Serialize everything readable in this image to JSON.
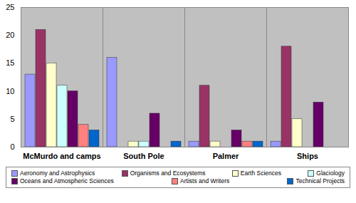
{
  "chart_data": {
    "type": "bar",
    "categories": [
      "McMurdo and camps",
      "South Pole",
      "Palmer",
      "Ships"
    ],
    "series": [
      {
        "name": "Aeronomy and Astrophysics",
        "color": "#9999ff",
        "values": [
          13,
          16,
          1,
          1
        ]
      },
      {
        "name": "Organisms and Ecosystems",
        "color": "#993366",
        "values": [
          21,
          0,
          11,
          18
        ]
      },
      {
        "name": "Earth Sciences",
        "color": "#ffffcc",
        "values": [
          15,
          1,
          1,
          5
        ]
      },
      {
        "name": "Glaciology",
        "color": "#ccffff",
        "values": [
          11,
          1,
          0,
          0
        ]
      },
      {
        "name": "Oceans and Atmospheric Sciences",
        "color": "#660066",
        "values": [
          10,
          6,
          3,
          8
        ]
      },
      {
        "name": "Artists and Writers",
        "color": "#ff8080",
        "values": [
          4,
          0,
          1,
          0
        ]
      },
      {
        "name": "Technical Projects",
        "color": "#0066cc",
        "values": [
          3,
          1,
          1,
          0
        ]
      }
    ],
    "ylim": [
      0,
      25
    ],
    "yticks": [
      0,
      5,
      10,
      15,
      20,
      25
    ],
    "grid": false,
    "legend": "bottom"
  }
}
